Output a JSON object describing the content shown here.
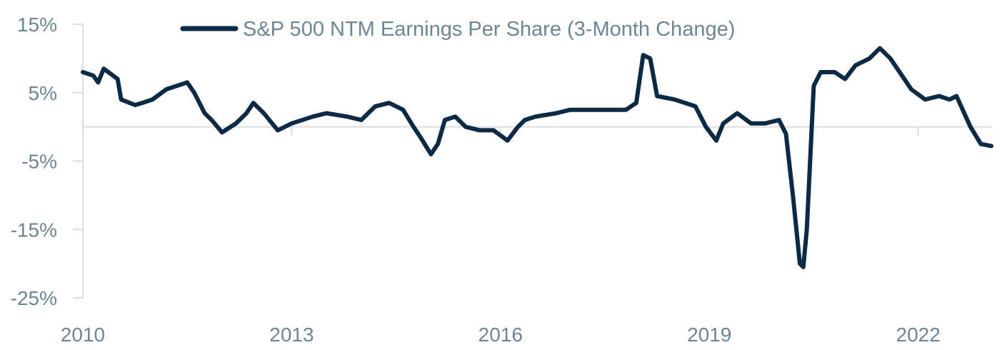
{
  "chart_data": {
    "type": "line",
    "title": "",
    "xlabel": "",
    "ylabel": "",
    "x_range": [
      2010,
      2023.05
    ],
    "ylim": [
      -25,
      15
    ],
    "y_ticks": [
      15,
      5,
      -5,
      -15,
      -25
    ],
    "y_tick_labels": [
      "15%",
      "5%",
      "-5%",
      "-15%",
      "-25%"
    ],
    "x_ticks": [
      2010,
      2013,
      2016,
      2019,
      2022
    ],
    "x_tick_labels": [
      "2010",
      "2013",
      "2016",
      "2019",
      "2022"
    ],
    "zero_line": true,
    "grid": false,
    "legend": {
      "position": "top-center"
    },
    "colors": {
      "series": "#0d2a45",
      "axis": "#d9dfe3",
      "text": "#6e8593"
    },
    "series": [
      {
        "name": "S&P 500 NTM Earnings Per Share (3-Month Change)",
        "x": [
          2010.0,
          2010.15,
          2010.22,
          2010.3,
          2010.5,
          2010.55,
          2010.75,
          2010.85,
          2011.0,
          2011.2,
          2011.35,
          2011.5,
          2011.6,
          2011.75,
          2011.85,
          2012.0,
          2012.2,
          2012.35,
          2012.45,
          2012.6,
          2012.8,
          2013.0,
          2013.3,
          2013.5,
          2013.8,
          2014.0,
          2014.2,
          2014.4,
          2014.6,
          2014.75,
          2014.85,
          2015.0,
          2015.1,
          2015.2,
          2015.35,
          2015.5,
          2015.7,
          2015.9,
          2016.1,
          2016.25,
          2016.35,
          2016.5,
          2016.8,
          2017.0,
          2017.3,
          2017.5,
          2017.8,
          2017.95,
          2018.05,
          2018.15,
          2018.25,
          2018.5,
          2018.8,
          2018.95,
          2019.1,
          2019.2,
          2019.4,
          2019.6,
          2019.8,
          2020.0,
          2020.1,
          2020.2,
          2020.3,
          2020.35,
          2020.4,
          2020.5,
          2020.6,
          2020.8,
          2020.95,
          2021.1,
          2021.3,
          2021.45,
          2021.6,
          2021.8,
          2021.9,
          2022.1,
          2022.3,
          2022.45,
          2022.55,
          2022.75,
          2022.9,
          2023.05
        ],
        "y": [
          8.0,
          7.5,
          6.5,
          8.5,
          7.0,
          4.0,
          3.2,
          3.5,
          4.0,
          5.5,
          6.0,
          6.5,
          5.0,
          2.0,
          1.0,
          -0.8,
          0.5,
          2.0,
          3.5,
          2.0,
          -0.5,
          0.5,
          1.5,
          2.0,
          1.5,
          1.0,
          3.0,
          3.5,
          2.5,
          0.0,
          -1.5,
          -4.0,
          -2.5,
          1.0,
          1.5,
          0.0,
          -0.5,
          -0.5,
          -2.0,
          0.0,
          1.0,
          1.5,
          2.0,
          2.5,
          2.5,
          2.5,
          2.5,
          3.5,
          10.5,
          10.0,
          4.5,
          4.0,
          3.0,
          0.0,
          -2.0,
          0.5,
          2.0,
          0.5,
          0.5,
          1.0,
          -1.0,
          -10.0,
          -20.0,
          -20.5,
          -15.0,
          6.0,
          8.0,
          8.0,
          7.0,
          9.0,
          10.0,
          11.5,
          10.0,
          7.0,
          5.5,
          4.0,
          4.5,
          4.0,
          4.5,
          0.0,
          -2.5,
          -2.8
        ]
      }
    ]
  }
}
